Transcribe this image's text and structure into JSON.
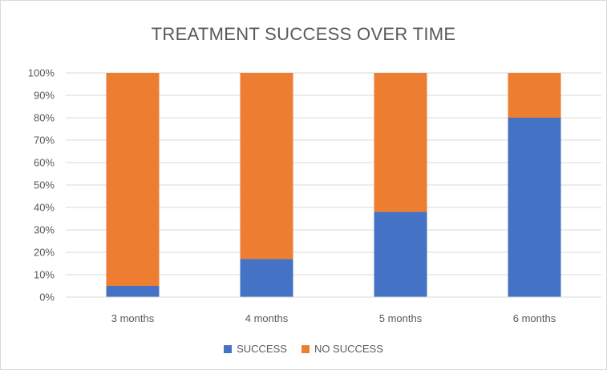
{
  "chart_data": {
    "type": "bar",
    "stacked": true,
    "title": "TREATMENT SUCCESS OVER TIME",
    "xlabel": "",
    "ylabel": "",
    "categories": [
      "3 months",
      "4 months",
      "5 months",
      "6 months"
    ],
    "series": [
      {
        "name": "SUCCESS",
        "color": "#4472C4",
        "values": [
          5,
          17,
          38,
          80
        ]
      },
      {
        "name": "NO SUCCESS",
        "color": "#ED7D31",
        "values": [
          95,
          83,
          62,
          20
        ]
      }
    ],
    "ylim": [
      0,
      100
    ],
    "yticks": [
      "0%",
      "10%",
      "20%",
      "30%",
      "40%",
      "50%",
      "60%",
      "70%",
      "80%",
      "90%",
      "100%"
    ],
    "grid": true,
    "legend_position": "bottom"
  }
}
